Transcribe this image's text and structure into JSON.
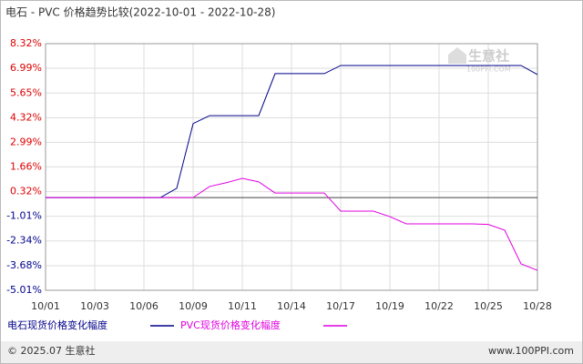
{
  "chart_data": {
    "type": "line",
    "title": "电石 - PVC 价格趋势比较(2022-10-01 - 2022-10-28)",
    "categories": [
      "10/01",
      null,
      null,
      "10/03",
      null,
      null,
      "10/06",
      null,
      null,
      "10/09",
      null,
      null,
      "10/11",
      null,
      null,
      "10/14",
      null,
      null,
      "10/17",
      null,
      null,
      "10/19",
      null,
      null,
      "10/22",
      null,
      null,
      "10/25",
      null,
      null,
      "10/28"
    ],
    "series": [
      {
        "name": "电石现货价格变化幅度",
        "color": "#00008b",
        "values": [
          0,
          0,
          0,
          0,
          0,
          0,
          0,
          0,
          0.5,
          4.0,
          4.43,
          4.43,
          4.43,
          4.43,
          6.7,
          6.7,
          6.7,
          6.7,
          7.14,
          7.14,
          7.14,
          7.14,
          7.14,
          7.14,
          7.14,
          7.14,
          7.14,
          7.14,
          7.14,
          7.14,
          6.65
        ]
      },
      {
        "name": "PVC现货价格变化幅度",
        "color": "#e000e0",
        "values": [
          0,
          0,
          0,
          0,
          0,
          0,
          0,
          0,
          0,
          0,
          0.6,
          0.8,
          1.04,
          0.85,
          0.25,
          0.25,
          0.25,
          0.25,
          -0.73,
          -0.73,
          -0.73,
          -1.03,
          -1.42,
          -1.42,
          -1.42,
          -1.42,
          -1.42,
          -1.45,
          -1.76,
          -3.58,
          -3.93
        ]
      }
    ],
    "ylim": [
      -5.01,
      8.32
    ],
    "yticks": [
      {
        "value": 8.32,
        "label": "8.32%"
      },
      {
        "value": 6.99,
        "label": "6.99%"
      },
      {
        "value": 5.65,
        "label": "5.65%"
      },
      {
        "value": 4.32,
        "label": "4.32%"
      },
      {
        "value": 2.99,
        "label": "2.99%"
      },
      {
        "value": 1.66,
        "label": "1.66%"
      },
      {
        "value": 0.32,
        "label": "0.32%"
      },
      {
        "value": -1.01,
        "label": "-1.01%"
      },
      {
        "value": -2.34,
        "label": "-2.34%"
      },
      {
        "value": -3.68,
        "label": "-3.68%"
      },
      {
        "value": -5.01,
        "label": "-5.01%"
      }
    ],
    "grid": true,
    "watermark": {
      "name": "生意社",
      "site": "100PPI.COM"
    },
    "footer": {
      "copyright": "© 2025.07 生意社",
      "site": "www.100PPI.com"
    }
  }
}
